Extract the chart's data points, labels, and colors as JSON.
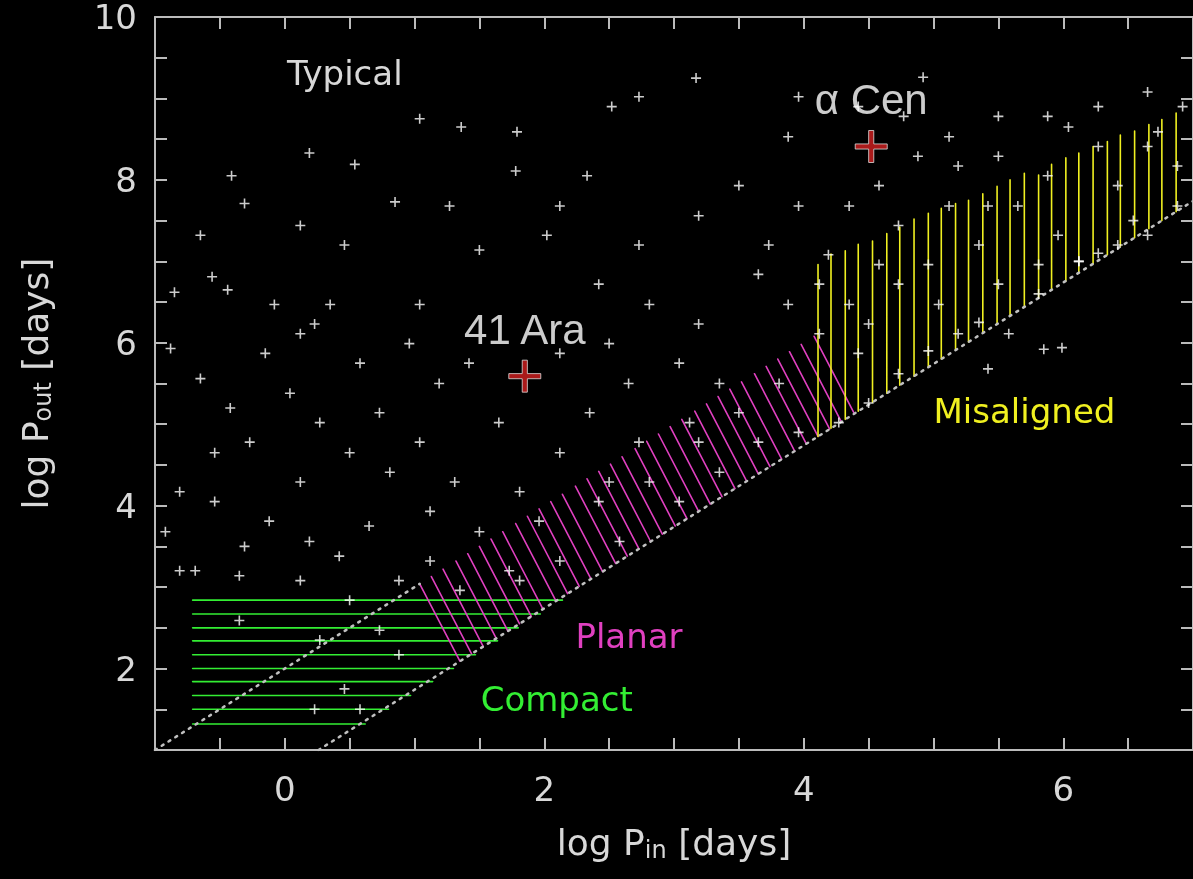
{
  "chart_data": {
    "type": "scatter",
    "xlabel": "log P$_{in}$ [days]",
    "ylabel": "log P$_{out}$ [days]",
    "grid": false,
    "xlim": [
      -1,
      7
    ],
    "ylim": [
      1,
      10
    ],
    "xticks": [
      {
        "value": -0.5,
        "label": null
      },
      0,
      {
        "value": 0.5,
        "label": null
      },
      {
        "value": 1,
        "label": null
      },
      {
        "value": 1.5,
        "label": null
      },
      2,
      {
        "value": 2.5,
        "label": null
      },
      {
        "value": 3,
        "label": null
      },
      {
        "value": 3.5,
        "label": null
      },
      4,
      {
        "value": 4.5,
        "label": null
      },
      {
        "value": 5,
        "label": null
      },
      {
        "value": 5.5,
        "label": null
      },
      6,
      {
        "value": 6.5,
        "label": null
      }
    ],
    "yticks": [
      {
        "value": 1.5,
        "label": null
      },
      2,
      {
        "value": 2.5,
        "label": null
      },
      {
        "value": 3,
        "label": null
      },
      {
        "value": 3.5,
        "label": null
      },
      4,
      {
        "value": 4.5,
        "label": null
      },
      {
        "value": 5,
        "label": null
      },
      {
        "value": 5.5,
        "label": null
      },
      6,
      {
        "value": 6.5,
        "label": null
      },
      {
        "value": 7,
        "label": null
      },
      {
        "value": 7.5,
        "label": null
      },
      8,
      {
        "value": 8.5,
        "label": null
      },
      {
        "value": 9,
        "label": null
      },
      {
        "value": 9.5,
        "label": null
      },
      10
    ],
    "series": [
      {
        "color": "#ffffff",
        "marker": "cross",
        "x": [
          0.19,
          -0.41,
          -0.31,
          -0.65,
          -0.56,
          -0.85,
          -0.44,
          0.12,
          0.46,
          0.54,
          1.04,
          1.36,
          1.79,
          1.78,
          2.52,
          2.73,
          3.17,
          2.33,
          1.5,
          1.27,
          0.85,
          1.04,
          2.12,
          2.02,
          2.73,
          3.19,
          3.73,
          3.5,
          3.88,
          3.96,
          4.42,
          4.92,
          4.77,
          5.12,
          5.5,
          5.88,
          6.27,
          6.65,
          6.73,
          6.92,
          -0.88,
          -0.65,
          -0.42,
          -0.54,
          -0.27,
          -0.81,
          -0.54,
          -0.12,
          -0.31,
          0.12,
          0.27,
          0.04,
          -0.15,
          0.12,
          0.35,
          0.58,
          0.73,
          0.5,
          0.81,
          1.04,
          1.19,
          0.96,
          1.42,
          1.65,
          1.31,
          1.12,
          0.65,
          0.42,
          0.19,
          1.5,
          1.81,
          2.12,
          2.35,
          2.12,
          2.5,
          2.65,
          2.81,
          2.42,
          3.04,
          3.19,
          3.35,
          3.12,
          2.73,
          2.5,
          1.96,
          1.73,
          1.12,
          0.88,
          0.5,
          0.12,
          -0.35,
          -0.69,
          -0.81,
          -0.92,
          -0.35,
          0.27,
          0.46,
          0.23,
          0.58,
          0.88,
          0.73,
          1.35,
          1.81,
          2.42,
          2.81,
          3.19,
          3.5,
          3.81,
          2.58,
          2.12,
          3.04,
          3.35,
          3.65,
          3.96,
          4.12,
          4.35,
          4.58,
          4.19,
          4.73,
          5.12,
          5.35,
          5.65,
          5.88,
          6.12,
          6.42,
          6.65,
          6.88,
          5.5,
          5.19,
          4.88,
          4.58,
          4.35,
          3.96,
          3.65,
          3.88,
          4.42,
          4.73,
          5.04,
          5.19,
          5.5,
          5.81,
          6.12,
          6.42,
          6.65,
          6.88,
          5.58,
          5.35,
          4.96,
          6.27,
          6.54,
          5.81,
          4.73,
          4.5,
          4.96,
          5.42,
          5.96,
          6.27,
          6.04,
          4.12,
          4.5,
          4.27,
          5.85,
          5.99,
          5.42,
          0.23,
          -0.08
        ],
        "values": [
          8.33,
          8.05,
          7.71,
          7.32,
          6.81,
          6.62,
          6.65,
          7.44,
          7.2,
          8.19,
          8.75,
          8.65,
          8.59,
          8.11,
          8.9,
          9.02,
          9.25,
          8.05,
          7.14,
          7.68,
          7.73,
          6.47,
          7.68,
          7.32,
          7.2,
          7.56,
          7.2,
          7.93,
          8.53,
          9.02,
          8.9,
          9.26,
          8.78,
          8.53,
          8.78,
          8.78,
          8.9,
          9.08,
          8.59,
          8.9,
          5.93,
          5.56,
          5.2,
          4.65,
          4.78,
          4.17,
          4.05,
          3.81,
          3.5,
          4.29,
          5.02,
          5.38,
          5.87,
          6.11,
          6.47,
          5.75,
          5.14,
          4.65,
          4.41,
          4.78,
          5.5,
          5.99,
          5.75,
          5.02,
          4.29,
          3.93,
          3.75,
          3.38,
          3.56,
          3.68,
          4.17,
          4.65,
          5.14,
          5.87,
          5.99,
          5.5,
          6.47,
          6.72,
          5.75,
          6.23,
          5.5,
          5.02,
          4.78,
          4.29,
          3.81,
          3.2,
          3.32,
          3.08,
          2.84,
          3.08,
          3.14,
          3.2,
          3.2,
          3.68,
          2.59,
          2.35,
          1.75,
          1.5,
          1.5,
          2.17,
          2.47,
          2.96,
          3.08,
          4.05,
          4.29,
          4.78,
          5.14,
          5.5,
          3.56,
          3.32,
          4.05,
          4.41,
          4.78,
          4.9,
          6.11,
          6.47,
          6.96,
          7.08,
          7.44,
          7.68,
          7.2,
          7.68,
          8.05,
          7.0,
          7.93,
          8.41,
          8.17,
          8.29,
          8.17,
          8.29,
          7.93,
          7.68,
          7.68,
          6.84,
          6.47,
          5.87,
          5.62,
          6.47,
          6.11,
          6.72,
          6.96,
          7.0,
          7.2,
          7.32,
          7.68,
          6.11,
          6.25,
          5.9,
          7.1,
          7.5,
          6.6,
          6.72,
          6.23,
          6.96,
          7.68,
          7.32,
          8.41,
          8.65,
          6.72,
          5.26,
          5.02,
          5.92,
          5.94,
          5.68,
          6.23,
          6.47
        ]
      },
      {
        "type": "line",
        "name": "Compact",
        "color": "#33ee33",
        "line_style": "solid",
        "x": [
          -0.71,
          2.14,
          null,
          -0.71,
          1.97,
          null,
          -0.71,
          1.8,
          null,
          -0.71,
          1.64,
          null,
          -0.71,
          1.47,
          null,
          -0.71,
          1.3,
          null,
          -0.71,
          1.14,
          null,
          -0.71,
          0.97,
          null,
          -0.71,
          0.8,
          null,
          -0.71,
          0.62,
          null
        ],
        "values": [
          2.84,
          2.84,
          null,
          2.67,
          2.67,
          null,
          2.5,
          2.5,
          null,
          2.34,
          2.34,
          null,
          2.17,
          2.17,
          null,
          2.0,
          2.0,
          null,
          1.84,
          1.84,
          null,
          1.67,
          1.67,
          null,
          1.5,
          1.5,
          null,
          1.32,
          1.32,
          null
        ]
      },
      {
        "type": "line",
        "name": "Planar",
        "color": "#e040c0",
        "line_style": "solid",
        "x": [
          1.04,
          1.35,
          null,
          1.13,
          1.44,
          null,
          1.22,
          1.53,
          null,
          1.32,
          1.63,
          null,
          1.41,
          1.72,
          null,
          1.5,
          1.81,
          null,
          1.59,
          1.9,
          null,
          1.68,
          1.99,
          null,
          1.78,
          2.09,
          null,
          1.87,
          2.18,
          null,
          1.96,
          2.27,
          null,
          2.05,
          2.36,
          null,
          2.14,
          2.45,
          null,
          2.24,
          2.55,
          null,
          2.33,
          2.64,
          null,
          2.42,
          2.73,
          null,
          2.51,
          2.82,
          null,
          2.6,
          2.91,
          null,
          2.7,
          3.01,
          null,
          2.79,
          3.1,
          null,
          2.88,
          3.19,
          null,
          2.97,
          3.28,
          null,
          3.06,
          3.37,
          null,
          3.16,
          3.47,
          null,
          3.25,
          3.56,
          null,
          3.34,
          3.65,
          null,
          3.43,
          3.74,
          null,
          3.52,
          3.83,
          null,
          3.62,
          3.93,
          null,
          3.71,
          4.02,
          null,
          3.8,
          4.11,
          null,
          3.89,
          4.2,
          null,
          3.98,
          4.29,
          null,
          4.08,
          4.39,
          null
        ],
        "values": [
          3.04,
          2.09,
          null,
          3.13,
          2.18,
          null,
          3.22,
          2.27,
          null,
          3.32,
          2.37,
          null,
          3.41,
          2.46,
          null,
          3.5,
          2.55,
          null,
          3.59,
          2.64,
          null,
          3.68,
          2.73,
          null,
          3.78,
          2.83,
          null,
          3.87,
          2.92,
          null,
          3.96,
          3.01,
          null,
          4.05,
          3.1,
          null,
          4.14,
          3.19,
          null,
          4.24,
          3.29,
          null,
          4.33,
          3.38,
          null,
          4.42,
          3.47,
          null,
          4.51,
          3.56,
          null,
          4.6,
          3.65,
          null,
          4.7,
          3.75,
          null,
          4.79,
          3.84,
          null,
          4.88,
          3.93,
          null,
          4.97,
          4.02,
          null,
          5.06,
          4.11,
          null,
          5.16,
          4.21,
          null,
          5.25,
          4.3,
          null,
          5.34,
          4.39,
          null,
          5.43,
          4.48,
          null,
          5.52,
          4.57,
          null,
          5.62,
          4.67,
          null,
          5.71,
          4.76,
          null,
          5.8,
          4.85,
          null,
          5.89,
          4.94,
          null,
          5.98,
          5.03,
          null,
          6.08,
          5.13,
          null
        ]
      },
      {
        "type": "line",
        "name": "Misaligned",
        "color": "#f0f020",
        "line_style": "solid",
        "x": [
          4.11,
          4.11,
          null,
          4.21,
          4.21,
          null,
          4.32,
          4.32,
          null,
          4.42,
          4.42,
          null,
          4.53,
          4.53,
          null,
          4.64,
          4.64,
          null,
          4.74,
          4.74,
          null,
          4.85,
          4.85,
          null,
          4.96,
          4.96,
          null,
          5.06,
          5.06,
          null,
          5.17,
          5.17,
          null,
          5.27,
          5.27,
          null,
          5.38,
          5.38,
          null,
          5.49,
          5.49,
          null,
          5.59,
          5.59,
          null,
          5.7,
          5.7,
          null,
          5.81,
          5.81,
          null,
          5.91,
          5.91,
          null,
          6.02,
          6.02,
          null,
          6.12,
          6.12,
          null,
          6.23,
          6.23,
          null,
          6.34,
          6.34,
          null,
          6.44,
          6.44,
          null,
          6.55,
          6.55,
          null,
          6.66,
          6.66,
          null,
          6.76,
          6.76,
          null,
          6.87,
          6.87,
          null
        ],
        "values": [
          4.85,
          6.96,
          null,
          4.95,
          7.09,
          null,
          5.06,
          7.13,
          null,
          5.16,
          7.21,
          null,
          5.27,
          7.25,
          null,
          5.38,
          7.34,
          null,
          5.48,
          7.42,
          null,
          5.59,
          7.52,
          null,
          5.7,
          7.59,
          null,
          5.8,
          7.65,
          null,
          5.91,
          7.71,
          null,
          6.01,
          7.75,
          null,
          6.12,
          7.83,
          null,
          6.23,
          7.92,
          null,
          6.33,
          8.0,
          null,
          6.44,
          8.08,
          null,
          6.55,
          8.06,
          null,
          6.65,
          8.19,
          null,
          6.76,
          8.27,
          null,
          6.86,
          8.33,
          null,
          6.97,
          8.41,
          null,
          7.08,
          8.47,
          null,
          7.18,
          8.55,
          null,
          7.29,
          8.6,
          null,
          7.4,
          8.68,
          null,
          7.5,
          8.74,
          null,
          7.61,
          8.82,
          null
        ]
      },
      {
        "type": "line",
        "color": "#c0c0c0",
        "line_style": "dotted",
        "x": [
          -1,
          1.04
        ],
        "values": [
          1,
          3.04
        ]
      },
      {
        "type": "line",
        "color": "#c0c0c0",
        "line_style": "dotted",
        "x": [
          0.26,
          7
        ],
        "values": [
          1,
          7.74
        ]
      },
      {
        "color": "#d42020",
        "marker": "cross",
        "x": [
          1.85,
          4.52
        ],
        "values": [
          5.59,
          8.41
        ]
      }
    ],
    "annotations": [
      "Typical",
      {
        "text": "41 Ara",
        "x": 1.85,
        "y": 5.59
      },
      {
        "text": "α Cen",
        "x": 4.52,
        "y": 8.41
      }
    ]
  }
}
